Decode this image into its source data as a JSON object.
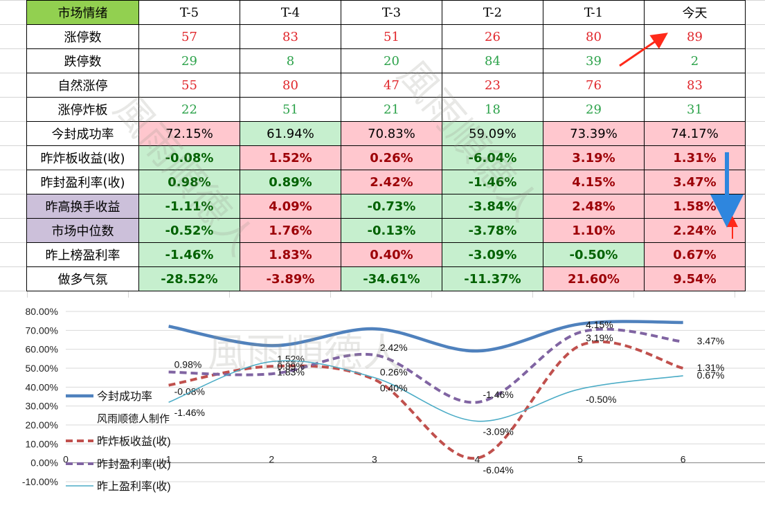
{
  "table": {
    "corner_label": "市场情绪",
    "columns": [
      "T-5",
      "T-4",
      "T-3",
      "T-2",
      "T-1",
      "今天"
    ],
    "rows": [
      {
        "label": "涨停数",
        "kind": "count",
        "values": [
          "57",
          "83",
          "51",
          "26",
          "80",
          "89"
        ],
        "colors": [
          "red",
          "red",
          "red",
          "red",
          "red",
          "red"
        ]
      },
      {
        "label": "跌停数",
        "kind": "count",
        "values": [
          "29",
          "8",
          "20",
          "84",
          "39",
          "2"
        ],
        "colors": [
          "green",
          "green",
          "green",
          "green",
          "green",
          "green"
        ]
      },
      {
        "label": "自然涨停",
        "kind": "count",
        "values": [
          "55",
          "80",
          "47",
          "23",
          "76",
          "83"
        ],
        "colors": [
          "red",
          "red",
          "red",
          "red",
          "red",
          "red"
        ]
      },
      {
        "label": "涨停炸板",
        "kind": "count",
        "values": [
          "22",
          "51",
          "21",
          "18",
          "29",
          "31"
        ],
        "colors": [
          "green",
          "green",
          "green",
          "green",
          "green",
          "green"
        ]
      },
      {
        "label": "今封成功率",
        "kind": "pct-plain",
        "values": [
          "72.15%",
          "61.94%",
          "70.83%",
          "59.09%",
          "73.39%",
          "74.17%"
        ],
        "colors": [
          "pink",
          "green",
          "pink",
          "green",
          "pink",
          "pink"
        ]
      },
      {
        "label": "昨炸板收益(收)",
        "kind": "pct",
        "values": [
          "-0.08%",
          "1.52%",
          "0.26%",
          "-6.04%",
          "3.19%",
          "1.31%"
        ],
        "colors": [
          "green",
          "pink",
          "pink",
          "green",
          "pink",
          "pink"
        ]
      },
      {
        "label": "昨封盈利率(收)",
        "kind": "pct",
        "values": [
          "0.98%",
          "0.89%",
          "2.42%",
          "-1.46%",
          "4.15%",
          "3.47%"
        ],
        "colors": [
          "green",
          "green",
          "pink",
          "green",
          "pink",
          "pink"
        ]
      },
      {
        "label": "昨高换手收益",
        "kind": "pct",
        "purple": true,
        "values": [
          "-1.11%",
          "4.09%",
          "-0.73%",
          "-3.84%",
          "2.48%",
          "1.58%"
        ],
        "colors": [
          "green",
          "pink",
          "green",
          "green",
          "pink",
          "pink"
        ]
      },
      {
        "label": "市场中位数",
        "kind": "pct",
        "purple": true,
        "values": [
          "-0.52%",
          "1.76%",
          "-0.13%",
          "-3.78%",
          "1.10%",
          "2.24%"
        ],
        "colors": [
          "green",
          "pink",
          "green",
          "green",
          "pink",
          "pink"
        ]
      },
      {
        "label": "昨上榜盈利率",
        "kind": "pct",
        "values": [
          "-1.46%",
          "1.83%",
          "0.40%",
          "-3.09%",
          "-0.50%",
          "0.67%"
        ],
        "colors": [
          "green",
          "pink",
          "pink",
          "green",
          "green",
          "pink"
        ]
      },
      {
        "label": "做多气氛",
        "kind": "pct",
        "values": [
          "-28.52%",
          "-3.89%",
          "-34.61%",
          "-11.37%",
          "21.60%",
          "9.54%"
        ],
        "colors": [
          "green",
          "pink",
          "green",
          "green",
          "pink",
          "pink"
        ]
      }
    ]
  },
  "watermark_text": "風雨順德人",
  "colors": {
    "red_text": "#e0262b",
    "green_text": "#2ca24a",
    "pink_fill": "#ffc7ce",
    "green_fill": "#c6efce",
    "header_green": "#92d050",
    "purple_fill": "#ccc0da"
  },
  "chart_data": {
    "type": "line",
    "x": [
      1,
      2,
      3,
      4,
      5,
      6
    ],
    "xlim": [
      0,
      7
    ],
    "xticks": [
      "0",
      "1",
      "2",
      "3",
      "4",
      "5",
      "6"
    ],
    "ylim": [
      -10,
      80
    ],
    "yticks": [
      "-10.00%",
      "0.00%",
      "10.00%",
      "20.00%",
      "30.00%",
      "40.00%",
      "50.00%",
      "60.00%",
      "70.00%",
      "80.00%"
    ],
    "legend_caption": "风雨顺德人制作",
    "series": [
      {
        "name": "今封成功率",
        "values": [
          72.15,
          61.94,
          70.83,
          59.09,
          73.39,
          74.17
        ],
        "color": "#4f81bd",
        "style": "solid-thick",
        "labels": []
      },
      {
        "name": "昨炸板收益(收)",
        "values": [
          41,
          51,
          44,
          2.5,
          62,
          50
        ],
        "color": "#c0504d",
        "style": "dashed",
        "labels": [
          "-0.08%",
          "1.52%",
          "0.26%",
          "-6.04%",
          "3.19%",
          "1.31%"
        ]
      },
      {
        "name": "昨封盈利率(收)",
        "values": [
          48,
          47,
          57,
          32,
          69,
          64
        ],
        "color": "#8064a2",
        "style": "dashed",
        "labels": [
          "0.98%",
          "0.89%",
          "2.42%",
          "-1.46%",
          "4.15%",
          "3.47%"
        ]
      },
      {
        "name": "昨上盈利率(收)",
        "values": [
          32,
          53.5,
          45,
          22,
          39,
          46
        ],
        "color": "#4bacc6",
        "style": "solid-thin",
        "labels": [
          "-1.46%",
          "1.83%",
          "0.40%",
          "-3.09%",
          "-0.50%",
          "0.67%"
        ]
      }
    ]
  }
}
